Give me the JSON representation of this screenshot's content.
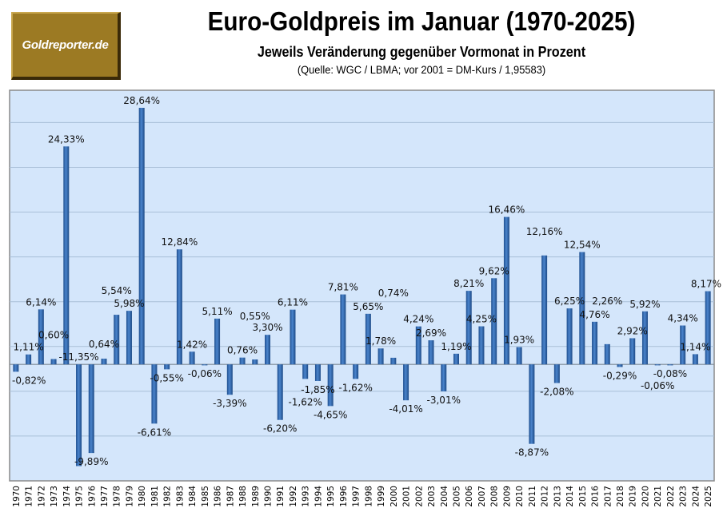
{
  "logo": {
    "text": "Goldreporter.de"
  },
  "chart_data": {
    "type": "bar",
    "title": "Euro-Goldpreis im Januar (1970-2025)",
    "subtitle": "Jeweils Veränderung gegenüber Vormonat in Prozent",
    "source": "(Quelle: WGC / LBMA; vor 2001 = DM-Kurs  / 1,95583)",
    "xlabel": "",
    "ylabel": "",
    "ylim": [
      -13,
      30.6
    ],
    "gridlines": [
      -8,
      -3,
      2,
      7,
      12,
      17,
      22,
      27
    ],
    "grid": true,
    "legend": "none",
    "bar_color": "#2e62a8",
    "plot_background": "#d4e6fb",
    "categories": [
      "1970",
      "1971",
      "1972",
      "1973",
      "1974",
      "1975",
      "1976",
      "1977",
      "1978",
      "1979",
      "1980",
      "1981",
      "1982",
      "1983",
      "1984",
      "1985",
      "1986",
      "1987",
      "1988",
      "1989",
      "1990",
      "1991",
      "1992",
      "1993",
      "1994",
      "1995",
      "1996",
      "1997",
      "1998",
      "1999",
      "2000",
      "2001",
      "2002",
      "2003",
      "2004",
      "2005",
      "2006",
      "2007",
      "2008",
      "2009",
      "2010",
      "2011",
      "2012",
      "2013",
      "2014",
      "2015",
      "2016",
      "2017",
      "2018",
      "2019",
      "2020",
      "2021",
      "2022",
      "2023",
      "2024",
      "2025"
    ],
    "values": [
      -0.82,
      1.11,
      6.14,
      0.6,
      24.33,
      -11.35,
      -9.89,
      0.64,
      5.54,
      5.98,
      28.64,
      -6.61,
      -0.55,
      12.84,
      1.42,
      -0.06,
      5.11,
      -3.39,
      0.76,
      0.55,
      3.3,
      -6.2,
      6.11,
      -1.62,
      -1.85,
      -4.65,
      7.81,
      -1.62,
      5.65,
      1.78,
      0.74,
      -4.01,
      4.24,
      2.69,
      -3.01,
      1.19,
      8.21,
      4.25,
      9.62,
      16.46,
      1.93,
      -8.87,
      12.16,
      -2.08,
      6.25,
      12.54,
      4.76,
      2.26,
      -0.29,
      2.92,
      5.92,
      -0.06,
      -0.08,
      4.34,
      1.14,
      8.17
    ],
    "labels": [
      "-0,82%",
      "1,11%",
      "6,14%",
      "0,60%",
      "24,33%",
      "-11,35%",
      "-9,89%",
      "0,64%",
      "5,54%",
      "5,98%",
      "28,64%",
      "-6,61%",
      "-0,55%",
      "12,84%",
      "1,42%",
      "-0,06%",
      "5,11%",
      "-3,39%",
      "0,76%",
      "0,55%",
      "3,30%",
      "-6,20%",
      "6,11%",
      "-1,62%",
      "-1,85%",
      "-4,65%",
      "7,81%",
      "-1,62%",
      "5,65%",
      "1,78%",
      "0,74%",
      "-4,01%",
      "4,24%",
      "2,69%",
      "-3,01%",
      "1,19%",
      "8,21%",
      "4,25%",
      "9,62%",
      "16,46%",
      "1,93%",
      "-8,87%",
      "12,16%",
      "-2,08%",
      "6,25%",
      "12,54%",
      "4,76%",
      "2,26%",
      "-0,29%",
      "2,92%",
      "5,92%",
      "-0,06%",
      "-0,08%",
      "4,34%",
      "1,14%",
      "8,17%"
    ]
  }
}
